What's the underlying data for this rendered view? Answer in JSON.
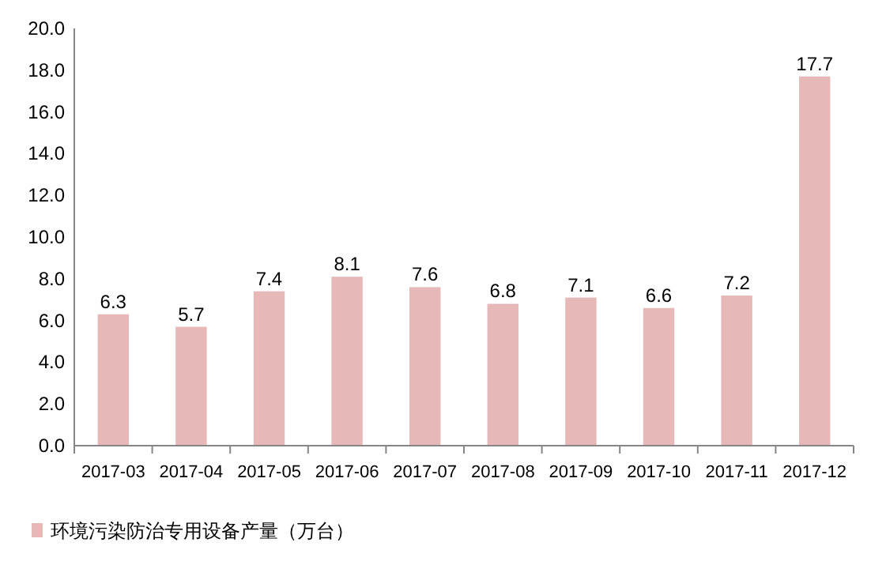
{
  "chart_data": {
    "type": "bar",
    "categories": [
      "2017-03",
      "2017-04",
      "2017-05",
      "2017-06",
      "2017-07",
      "2017-08",
      "2017-09",
      "2017-10",
      "2017-11",
      "2017-12"
    ],
    "series": [
      {
        "name": "环境污染防治专用设备产量（万台）",
        "color": "#e6b9b8",
        "values": [
          6.3,
          5.7,
          7.4,
          8.1,
          7.6,
          6.8,
          7.1,
          6.6,
          7.2,
          17.7
        ]
      }
    ],
    "ylim": [
      0,
      20
    ],
    "yticks": [
      {
        "value": 0,
        "label": "0.0"
      },
      {
        "value": 2,
        "label": "2.0"
      },
      {
        "value": 4,
        "label": "4.0"
      },
      {
        "value": 6,
        "label": "6.0"
      },
      {
        "value": 8,
        "label": "8.0"
      },
      {
        "value": 10,
        "label": "10.0"
      },
      {
        "value": 12,
        "label": "12.0"
      },
      {
        "value": 14,
        "label": "14.0"
      },
      {
        "value": 16,
        "label": "16.0"
      },
      {
        "value": 18,
        "label": "18.0"
      },
      {
        "value": 20,
        "label": "20.0"
      }
    ],
    "data_labels": true,
    "legend": "bottom left",
    "grid": false
  }
}
